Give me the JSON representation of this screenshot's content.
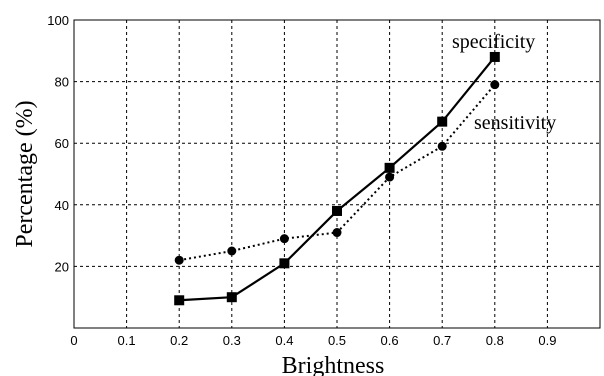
{
  "chart_data": {
    "type": "line",
    "title": "",
    "xlabel": "Brightness",
    "ylabel": "Percentage (%)",
    "xlim": [
      0,
      1
    ],
    "ylim": [
      0,
      100
    ],
    "xticks": [
      0,
      0.1,
      0.2,
      0.3,
      0.4,
      0.5,
      0.6,
      0.7,
      0.8,
      0.9
    ],
    "yticks": [
      20,
      40,
      60,
      80,
      100
    ],
    "grid": true,
    "x": [
      0.2,
      0.3,
      0.4,
      0.5,
      0.6,
      0.7,
      0.8
    ],
    "series": [
      {
        "name": "specificity",
        "values": [
          9,
          10,
          21,
          38,
          52,
          67,
          88
        ],
        "style": "solid",
        "marker": "square",
        "color": "#000000"
      },
      {
        "name": "sensitivity",
        "values": [
          22,
          25,
          29,
          31,
          49,
          59,
          79
        ],
        "style": "dotted",
        "marker": "circle",
        "color": "#000000"
      }
    ]
  }
}
